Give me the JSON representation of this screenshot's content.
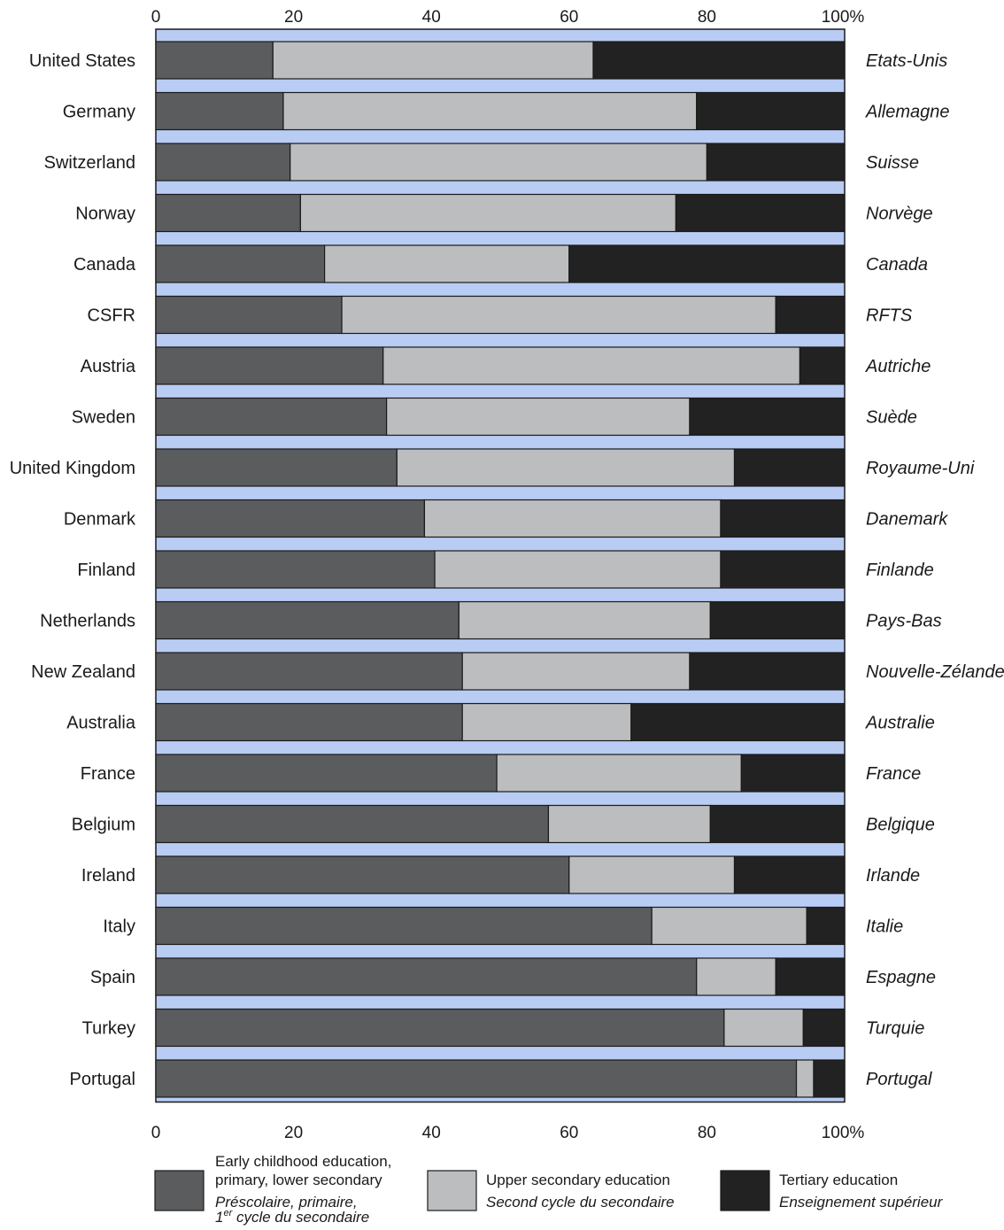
{
  "chart_data": {
    "type": "bar",
    "orientation": "horizontal",
    "stacked": true,
    "x_ticks": [
      "0",
      "20",
      "40",
      "60",
      "80",
      "100%"
    ],
    "xlim": [
      0,
      100
    ],
    "categories": [
      "United States",
      "Germany",
      "Switzerland",
      "Norway",
      "Canada",
      "CSFR",
      "Austria",
      "Sweden",
      "United Kingdom",
      "Denmark",
      "Finland",
      "Netherlands",
      "New Zealand",
      "Australia",
      "France",
      "Belgium",
      "Ireland",
      "Italy",
      "Spain",
      "Turkey",
      "Portugal"
    ],
    "categories_fr": [
      "Etats-Unis",
      "Allemagne",
      "Suisse",
      "Norvège",
      "Canada",
      "RFTS",
      "Autriche",
      "Suède",
      "Royaume-Uni",
      "Danemark",
      "Finlande",
      "Pays-Bas",
      "Nouvelle-Zélande",
      "Australie",
      "France",
      "Belgique",
      "Irlande",
      "Italie",
      "Espagne",
      "Turquie",
      "Portugal"
    ],
    "series": [
      {
        "name": "Early childhood education, primary, lower secondary",
        "name_fr": "Préscolaire, primaire, 1er cycle du secondaire",
        "color": "#5a5c5e",
        "values": [
          17,
          18.5,
          19.5,
          21,
          24.5,
          27,
          33,
          33.5,
          35,
          39,
          40.5,
          44,
          44.5,
          44.5,
          49.5,
          57,
          60,
          72,
          78.5,
          82.5,
          93
        ]
      },
      {
        "name": "Upper secondary education",
        "name_fr": "Second cycle du secondaire",
        "color": "#bcbdbf",
        "values": [
          46.5,
          60,
          60.5,
          54.5,
          35.5,
          63,
          60.5,
          44,
          49,
          43,
          41.5,
          36.5,
          33,
          24.5,
          35.5,
          23.5,
          24,
          22.5,
          11.5,
          11.5,
          2.5
        ]
      },
      {
        "name": "Tertiary education",
        "name_fr": "Enseignement supérieur",
        "color": "#222222",
        "values": [
          36.5,
          21.5,
          20,
          24.5,
          40,
          10,
          6.5,
          22.5,
          16,
          18,
          18,
          19.5,
          22.5,
          31,
          15,
          19.5,
          16,
          5.5,
          10,
          6,
          4.5
        ]
      }
    ],
    "colors": {
      "band": "#b8ccf4",
      "outline": "#1a1a1a"
    },
    "legend": {
      "placement": "bottom",
      "items": [
        {
          "en_lines": [
            "Early childhood education,",
            "primary, lower secondary"
          ],
          "fr_lines": [
            "Préscolaire, primaire,"
          ],
          "fr_last_pre": "1",
          "fr_last_sup": "er",
          "fr_last_post": " cycle du secondaire"
        },
        {
          "en_lines": [
            "Upper secondary education"
          ],
          "fr_lines": [
            "Second cycle du secondaire"
          ]
        },
        {
          "en_lines": [
            "Tertiary education"
          ],
          "fr_lines": [
            "Enseignement supérieur"
          ]
        }
      ]
    }
  }
}
